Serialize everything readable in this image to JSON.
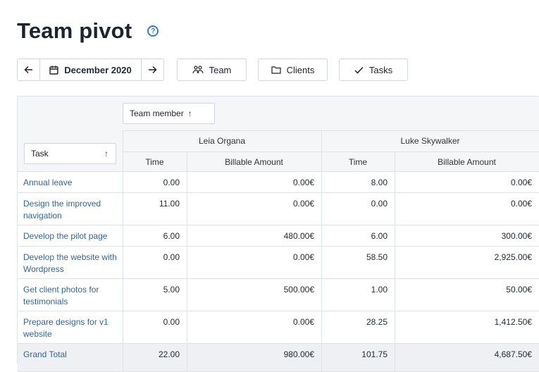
{
  "page": {
    "title": "Team pivot",
    "help_glyph": "?"
  },
  "toolbar": {
    "month": "December 2020",
    "team_label": "Team",
    "clients_label": "Clients",
    "tasks_label": "Tasks"
  },
  "table": {
    "column_sort_label": "Team member",
    "row_sort_label": "Task",
    "sort_glyph": "↑",
    "members": [
      "Leia Organa",
      "Luke Skywalker"
    ],
    "subcolumns": [
      "Time",
      "Billable Amount",
      "Time",
      "Billable Amount"
    ],
    "rows": [
      {
        "task": "Annual leave",
        "values": [
          "0.00",
          "0.00€",
          "8.00",
          "0.00€"
        ]
      },
      {
        "task": "Design the improved navigation",
        "values": [
          "11.00",
          "0.00€",
          "0.00",
          "0.00€"
        ]
      },
      {
        "task": "Develop the pilot page",
        "values": [
          "6.00",
          "480.00€",
          "6.00",
          "300.00€"
        ]
      },
      {
        "task": "Develop the website with Wordpress",
        "values": [
          "0.00",
          "0.00€",
          "58.50",
          "2,925.00€"
        ]
      },
      {
        "task": "Get client photos for testimonials",
        "values": [
          "5.00",
          "500.00€",
          "1.00",
          "50.00€"
        ]
      },
      {
        "task": "Prepare designs for v1 website",
        "values": [
          "0.00",
          "0.00€",
          "28.25",
          "1,412.50€"
        ]
      }
    ],
    "total": {
      "task": "Grand Total",
      "values": [
        "22.00",
        "980.00€",
        "101.75",
        "4,687.50€"
      ]
    }
  }
}
